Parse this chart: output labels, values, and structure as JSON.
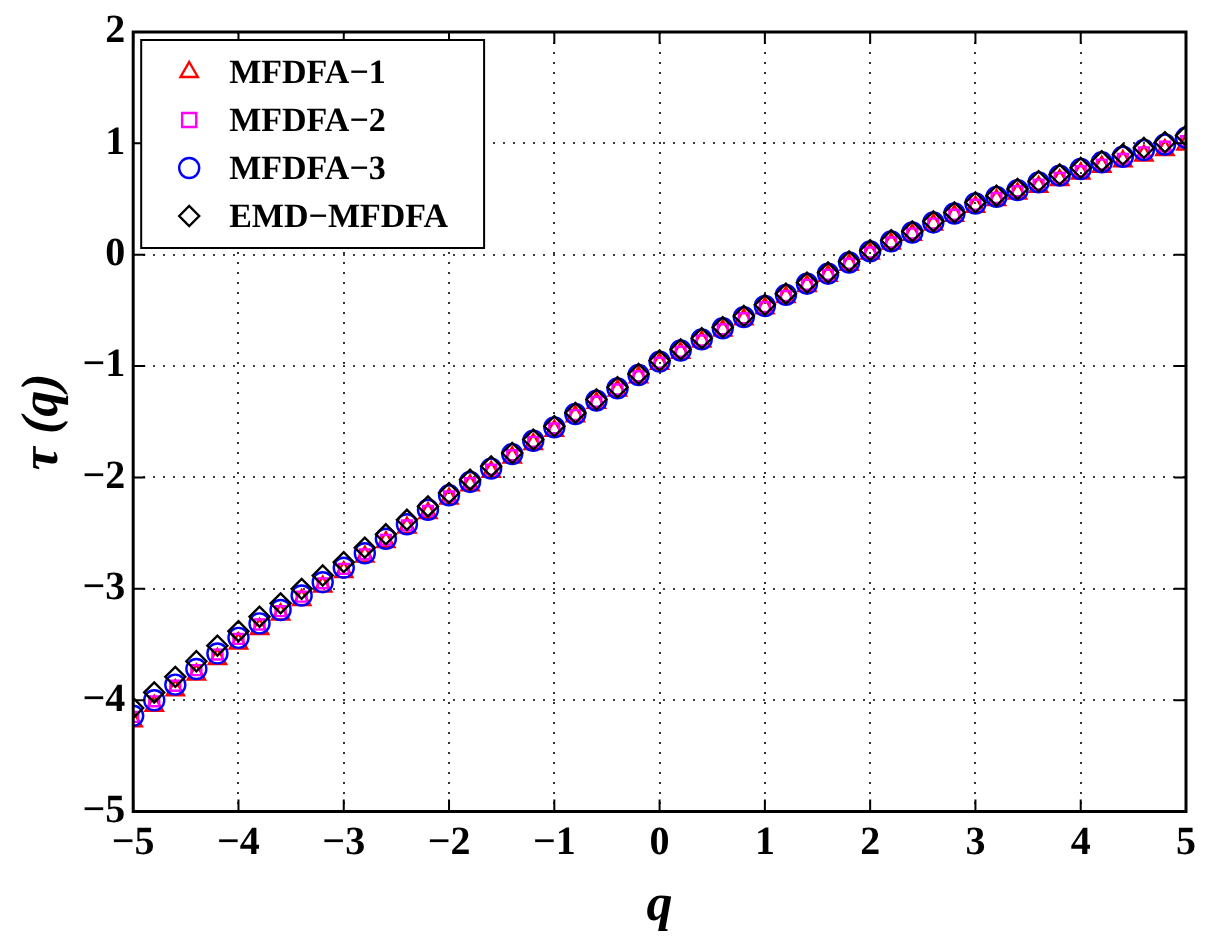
{
  "chart_data": {
    "type": "scatter",
    "xlabel": "q",
    "ylabel": "τ (q)",
    "x": [
      -5,
      -4.8,
      -4.6,
      -4.4,
      -4.2,
      -4,
      -3.8,
      -3.6,
      -3.4,
      -3.2,
      -3,
      -2.8,
      -2.6,
      -2.4,
      -2.2,
      -2,
      -1.8,
      -1.6,
      -1.4,
      -1.2,
      -1,
      -0.8,
      -0.6,
      -0.4,
      -0.2,
      0,
      0.2,
      0.4,
      0.6,
      0.8,
      1,
      1.2,
      1.4,
      1.6,
      1.8,
      2,
      2.2,
      2.4,
      2.6,
      2.8,
      3,
      3.2,
      3.4,
      3.6,
      3.8,
      4,
      4.2,
      4.4,
      4.6,
      4.8,
      5
    ],
    "series": [
      {
        "name": "MFDFA−1",
        "color": "#ff0000",
        "marker": "triangle",
        "values": [
          -4.19,
          -4.05,
          -3.91,
          -3.77,
          -3.63,
          -3.49,
          -3.36,
          -3.23,
          -3.1,
          -2.98,
          -2.85,
          -2.71,
          -2.58,
          -2.45,
          -2.32,
          -2.19,
          -2.07,
          -1.95,
          -1.82,
          -1.7,
          -1.58,
          -1.45,
          -1.33,
          -1.22,
          -1.1,
          -0.98,
          -0.88,
          -0.78,
          -0.68,
          -0.58,
          -0.48,
          -0.38,
          -0.28,
          -0.19,
          -0.09,
          0.01,
          0.1,
          0.18,
          0.27,
          0.35,
          0.43,
          0.49,
          0.55,
          0.61,
          0.67,
          0.73,
          0.79,
          0.84,
          0.89,
          0.94,
          0.99
        ]
      },
      {
        "name": "MFDFA−2",
        "color": "#ff00ff",
        "marker": "square",
        "values": [
          -4.15,
          -4.01,
          -3.87,
          -3.73,
          -3.59,
          -3.45,
          -3.32,
          -3.2,
          -3.07,
          -2.95,
          -2.82,
          -2.69,
          -2.56,
          -2.43,
          -2.3,
          -2.17,
          -2.05,
          -1.93,
          -1.8,
          -1.68,
          -1.56,
          -1.44,
          -1.32,
          -1.21,
          -1.09,
          -0.97,
          -0.87,
          -0.77,
          -0.67,
          -0.57,
          -0.47,
          -0.37,
          -0.27,
          -0.18,
          -0.08,
          0.02,
          0.11,
          0.19,
          0.28,
          0.36,
          0.45,
          0.51,
          0.57,
          0.63,
          0.69,
          0.75,
          0.81,
          0.86,
          0.92,
          0.97,
          1.02
        ]
      },
      {
        "name": "MFDFA−3",
        "color": "#0000ff",
        "marker": "circle",
        "values": [
          -4.14,
          -4.0,
          -3.86,
          -3.72,
          -3.58,
          -3.44,
          -3.31,
          -3.19,
          -3.06,
          -2.94,
          -2.81,
          -2.68,
          -2.55,
          -2.42,
          -2.29,
          -2.16,
          -2.04,
          -1.92,
          -1.79,
          -1.67,
          -1.55,
          -1.43,
          -1.31,
          -1.2,
          -1.08,
          -0.96,
          -0.86,
          -0.76,
          -0.66,
          -0.56,
          -0.46,
          -0.36,
          -0.26,
          -0.17,
          -0.07,
          0.03,
          0.12,
          0.2,
          0.29,
          0.37,
          0.46,
          0.52,
          0.58,
          0.65,
          0.71,
          0.77,
          0.83,
          0.88,
          0.94,
          0.99,
          1.05
        ]
      },
      {
        "name": "EMD−MFDFA",
        "color": "#000000",
        "marker": "diamond",
        "values": [
          -4.07,
          -3.93,
          -3.79,
          -3.65,
          -3.51,
          -3.38,
          -3.25,
          -3.13,
          -3.0,
          -2.88,
          -2.76,
          -2.63,
          -2.51,
          -2.38,
          -2.26,
          -2.14,
          -2.02,
          -1.9,
          -1.78,
          -1.66,
          -1.54,
          -1.42,
          -1.3,
          -1.19,
          -1.07,
          -0.95,
          -0.85,
          -0.75,
          -0.65,
          -0.55,
          -0.45,
          -0.35,
          -0.25,
          -0.16,
          -0.06,
          0.04,
          0.13,
          0.21,
          0.3,
          0.38,
          0.47,
          0.53,
          0.59,
          0.66,
          0.72,
          0.78,
          0.84,
          0.9,
          0.96,
          1.01,
          1.07
        ]
      }
    ],
    "xlim": [
      -5,
      5
    ],
    "xticks": [
      -5,
      -4,
      -3,
      -2,
      -1,
      0,
      1,
      2,
      3,
      4,
      5
    ],
    "ylim": [
      -5,
      2
    ],
    "yticks": [
      -5,
      -4,
      -3,
      -2,
      -1,
      0,
      1,
      2
    ],
    "grid": true,
    "legend": "top left"
  }
}
